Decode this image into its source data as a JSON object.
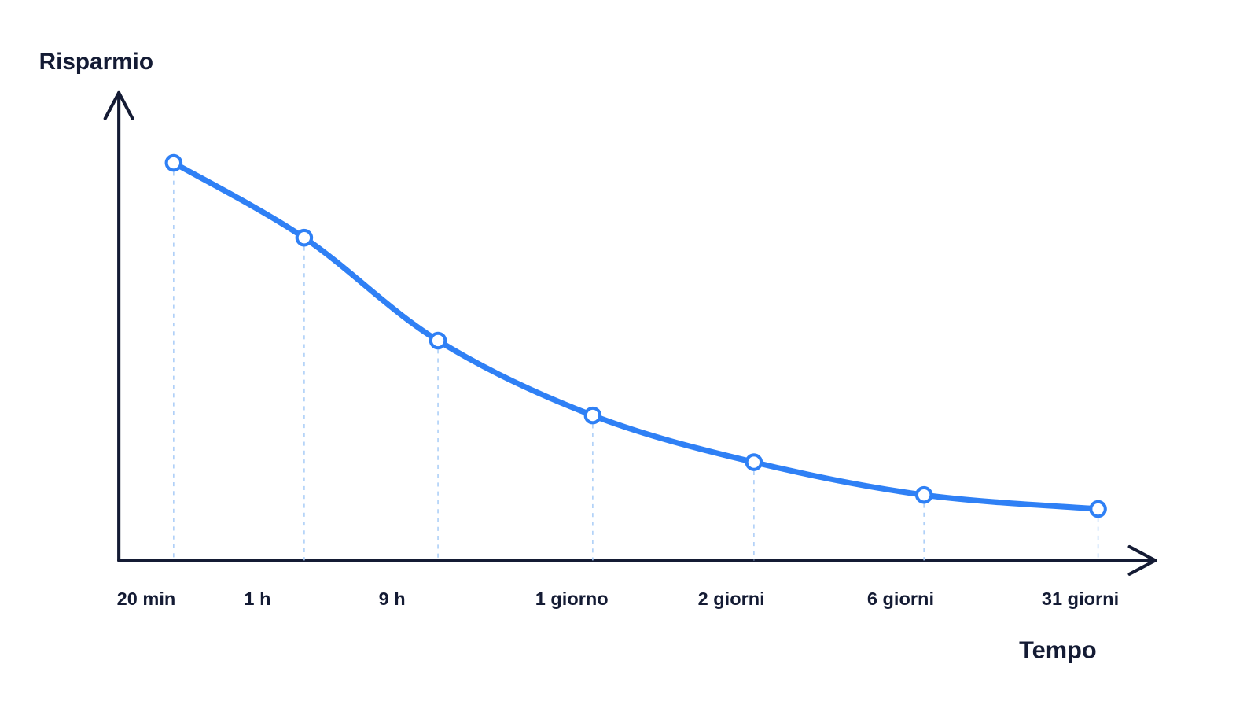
{
  "chart_data": {
    "type": "line",
    "y_label": "Risparmio",
    "x_label": "Tempo",
    "categories": [
      "20 min",
      "1 h",
      "9 h",
      "1 giorno",
      "2 giorni",
      "6 giorni",
      "31 giorni"
    ],
    "series": [
      {
        "color": "#2f80f5",
        "values": [
          85,
          69,
          47,
          31,
          21,
          14,
          11
        ]
      }
    ],
    "ylim": [
      0,
      100
    ]
  }
}
